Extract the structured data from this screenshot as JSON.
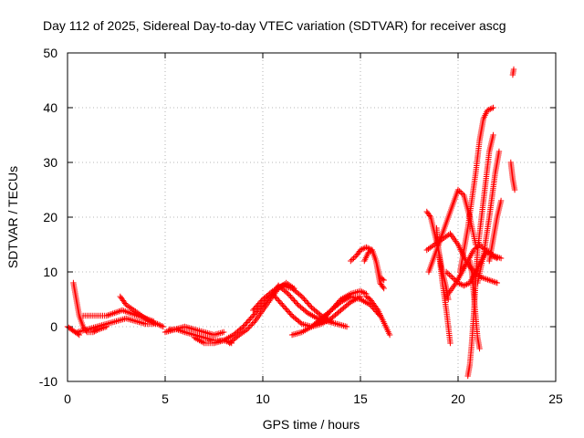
{
  "chart_data": {
    "type": "scatter",
    "title": "Day 112 of 2025, Sidereal Day-to-day VTEC variation (SDTVAR) for receiver ascg",
    "xlabel": "GPS time / hours",
    "ylabel": "SDTVAR / TECUs",
    "xlim": [
      0,
      25
    ],
    "ylim": [
      -10,
      50
    ],
    "xticks": [
      0,
      5,
      10,
      15,
      20,
      25
    ],
    "yticks": [
      -10,
      0,
      10,
      20,
      30,
      40,
      50
    ],
    "grid": true,
    "marker": "+",
    "color": "#ff0000",
    "series": [
      {
        "name": "s1",
        "x": [
          0.0,
          0.2,
          0.4,
          0.6
        ],
        "y": [
          0.0,
          -0.5,
          -1.0,
          -1.5
        ]
      },
      {
        "name": "s2",
        "x": [
          0.3,
          0.45,
          0.6,
          0.8,
          1.0,
          1.3,
          1.6,
          2.0
        ],
        "y": [
          8,
          5,
          2,
          0,
          -1,
          -1,
          -0.5,
          0
        ]
      },
      {
        "name": "s3",
        "x": [
          0.5,
          1.0,
          1.5,
          2.0,
          2.5,
          3.0,
          3.5,
          4.0,
          4.5
        ],
        "y": [
          -1,
          -0.5,
          0,
          0.5,
          1.0,
          1.5,
          1.0,
          0.5,
          0.5
        ]
      },
      {
        "name": "s4",
        "x": [
          0.8,
          1.2,
          1.6,
          2.0,
          2.4,
          2.8,
          3.2,
          3.6,
          4.0,
          4.4
        ],
        "y": [
          2,
          2,
          2,
          2,
          2.5,
          3,
          2.5,
          2,
          1.5,
          1
        ]
      },
      {
        "name": "s5",
        "x": [
          2.7,
          3.0,
          3.4,
          3.8,
          4.2,
          4.6,
          4.9
        ],
        "y": [
          5.5,
          4,
          3,
          2,
          1,
          0.5,
          0
        ]
      },
      {
        "name": "s6",
        "x": [
          5.0,
          5.5,
          6.0,
          6.5,
          7.0,
          7.5,
          8.0
        ],
        "y": [
          -1,
          -0.5,
          0,
          -0.5,
          -1,
          -1.5,
          -1
        ]
      },
      {
        "name": "s7",
        "x": [
          5.2,
          5.6,
          6.0,
          6.5,
          7.0,
          7.5,
          8.0,
          8.4
        ],
        "y": [
          -0.5,
          -0.5,
          -1,
          -1.5,
          -2,
          -2.5,
          -2.5,
          -3
        ]
      },
      {
        "name": "s8",
        "x": [
          6.5,
          7.0,
          7.5,
          8.0,
          8.5,
          9.0,
          9.5,
          10.0,
          10.5,
          10.8
        ],
        "y": [
          -2,
          -3,
          -3,
          -2.5,
          -1.5,
          0,
          2,
          4,
          6,
          7.5
        ]
      },
      {
        "name": "s9",
        "x": [
          8.3,
          8.8,
          9.2,
          9.6,
          10.0,
          10.4,
          10.8,
          11.2,
          11.6
        ],
        "y": [
          -3,
          -1.5,
          -0.5,
          1,
          3,
          5,
          7,
          8,
          7
        ]
      },
      {
        "name": "s10",
        "x": [
          9.5,
          10.0,
          10.5,
          11.0,
          11.5,
          12.0,
          12.5,
          13.0,
          13.5
        ],
        "y": [
          3,
          5,
          6.5,
          7.5,
          7,
          5.5,
          3.5,
          2,
          1
        ]
      },
      {
        "name": "s11",
        "x": [
          10.5,
          11.0,
          11.5,
          12.0,
          12.5,
          13.0,
          13.5,
          14.0,
          14.5,
          15.0
        ],
        "y": [
          6,
          4,
          2,
          0.5,
          0,
          0.5,
          1.5,
          3,
          4.5,
          5.5
        ]
      },
      {
        "name": "s12",
        "x": [
          10.8,
          11.3,
          11.8,
          12.3,
          12.8,
          13.3,
          13.8,
          14.3
        ],
        "y": [
          7.5,
          6,
          4,
          2.5,
          1.5,
          1,
          0.5,
          0
        ]
      },
      {
        "name": "s13",
        "x": [
          11.5,
          12.0,
          12.5,
          13.0,
          13.5,
          14.0,
          14.5,
          15.0,
          15.5,
          16.0
        ],
        "y": [
          -1.5,
          -1,
          0,
          1.5,
          3,
          4.5,
          5.5,
          5.0,
          4,
          2
        ]
      },
      {
        "name": "s14",
        "x": [
          12.5,
          13.0,
          13.5,
          14.0,
          14.5,
          15.0,
          15.3
        ],
        "y": [
          0,
          1,
          3,
          5,
          6,
          6.5,
          6
        ]
      },
      {
        "name": "s15",
        "x": [
          14.5,
          14.8,
          15.0,
          15.3,
          15.6,
          15.8,
          16.0,
          16.2
        ],
        "y": [
          12,
          13,
          14,
          14.5,
          14,
          12,
          9,
          8.5
        ]
      },
      {
        "name": "s16",
        "x": [
          15.2,
          15.4,
          15.6,
          15.8,
          16.0,
          16.2
        ],
        "y": [
          12,
          13.5,
          14,
          12,
          8,
          7
        ]
      },
      {
        "name": "s17",
        "x": [
          15.3,
          15.5,
          15.7,
          15.9,
          16.1,
          16.3,
          16.5
        ],
        "y": [
          5.5,
          5,
          4,
          3,
          1.5,
          0,
          -1.5
        ]
      },
      {
        "name": "s18",
        "x": [
          18.4,
          18.6,
          18.8,
          19.0,
          19.2,
          19.4,
          19.5
        ],
        "y": [
          21,
          20,
          17,
          14,
          10,
          7,
          5
        ]
      },
      {
        "name": "s19",
        "x": [
          18.4,
          18.8,
          19.2,
          19.6,
          20.0,
          20.4,
          20.8,
          21.2,
          21.6,
          22.0
        ],
        "y": [
          14,
          15,
          16,
          17,
          15,
          12,
          10,
          9,
          8.5,
          8
        ]
      },
      {
        "name": "s20",
        "x": [
          18.5,
          18.8,
          19.1,
          19.4,
          19.7,
          20.0,
          20.3,
          20.6,
          20.9
        ],
        "y": [
          10,
          13,
          16,
          19,
          22,
          25,
          24,
          20,
          15
        ]
      },
      {
        "name": "s21",
        "x": [
          18.9,
          19.0,
          19.2,
          19.4,
          19.6
        ],
        "y": [
          18,
          14,
          8,
          3,
          -3
        ]
      },
      {
        "name": "s22",
        "x": [
          19.4,
          19.7,
          20.0,
          20.3,
          20.6,
          20.9,
          21.2,
          21.5,
          21.8,
          22.2
        ],
        "y": [
          10,
          9,
          8,
          7.5,
          8,
          10,
          12,
          14,
          13,
          12.5
        ]
      },
      {
        "name": "s23",
        "x": [
          19.5,
          19.9,
          20.2,
          20.5,
          20.8,
          21.1,
          21.4,
          21.7,
          22.0
        ],
        "y": [
          6,
          8,
          10,
          12,
          14,
          15,
          14,
          13,
          12.5
        ]
      },
      {
        "name": "s24",
        "x": [
          20.1,
          20.3,
          20.5,
          20.7,
          20.9,
          21.1,
          21.3,
          21.5,
          21.8
        ],
        "y": [
          10,
          14,
          18,
          23,
          28,
          34,
          38,
          39.5,
          40
        ]
      },
      {
        "name": "s25",
        "x": [
          20.5,
          20.6,
          20.7,
          20.8,
          20.9,
          21.0,
          21.2,
          21.4,
          21.6,
          21.8
        ],
        "y": [
          -9,
          -7,
          -3,
          2,
          8,
          14,
          20,
          26,
          32,
          35
        ]
      },
      {
        "name": "s26",
        "x": [
          20.6,
          20.7,
          20.8,
          20.9,
          21.0,
          21.1
        ],
        "y": [
          12,
          10,
          6,
          2,
          -2,
          -4
        ]
      },
      {
        "name": "s27",
        "x": [
          21.0,
          21.3,
          21.6,
          21.9,
          22.1
        ],
        "y": [
          8,
          13,
          20,
          28,
          32
        ]
      },
      {
        "name": "s28",
        "x": [
          21.6,
          21.8,
          22.0,
          22.2
        ],
        "y": [
          12,
          16,
          20,
          23
        ]
      },
      {
        "name": "s29",
        "x": [
          22.7,
          22.8,
          22.9
        ],
        "y": [
          30,
          27,
          25
        ]
      },
      {
        "name": "s30",
        "x": [
          22.8,
          22.85
        ],
        "y": [
          46,
          47
        ]
      }
    ]
  }
}
